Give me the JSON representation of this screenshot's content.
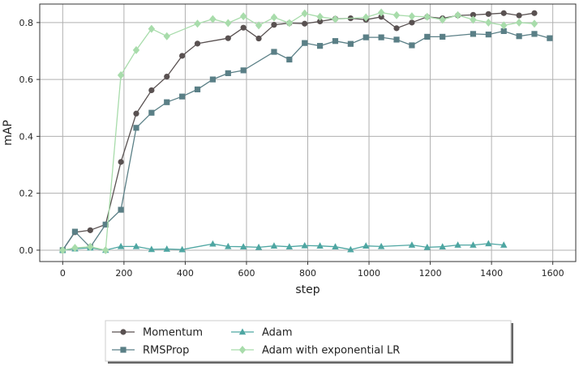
{
  "chart_data": {
    "type": "line",
    "title": "",
    "xlabel": "step",
    "ylabel": "mAP",
    "xlim": [
      -75,
      1675
    ],
    "ylim": [
      -0.04,
      0.865
    ],
    "xticks": [
      0,
      200,
      400,
      600,
      800,
      1000,
      1200,
      1400,
      1600
    ],
    "yticks": [
      0.0,
      0.2,
      0.4,
      0.6,
      0.8
    ],
    "xtick_labels": [
      "0",
      "200",
      "400",
      "600",
      "800",
      "1000",
      "1200",
      "1400",
      "1600"
    ],
    "ytick_labels": [
      "0.0",
      "0.2",
      "0.4",
      "0.6",
      "0.8"
    ],
    "grid": true,
    "legend_position": "bottom-center, below plot",
    "series": [
      {
        "name": "Momentum",
        "color": "#595151",
        "marker": "circle",
        "x": [
          0,
          40,
          90,
          140,
          190,
          240,
          290,
          340,
          390,
          440,
          540,
          590,
          640,
          690,
          740,
          790,
          840,
          890,
          940,
          990,
          1040,
          1090,
          1140,
          1190,
          1240,
          1290,
          1340,
          1390,
          1440,
          1490,
          1540
        ],
        "y": [
          0.0,
          0.063,
          0.07,
          0.09,
          0.31,
          0.48,
          0.562,
          0.61,
          0.683,
          0.726,
          0.745,
          0.782,
          0.744,
          0.792,
          0.798,
          0.796,
          0.804,
          0.813,
          0.815,
          0.81,
          0.82,
          0.78,
          0.8,
          0.82,
          0.815,
          0.825,
          0.827,
          0.83,
          0.833,
          0.825,
          0.833
        ]
      },
      {
        "name": "RMSProp",
        "color": "#5a7f86",
        "marker": "square",
        "x": [
          0,
          40,
          90,
          140,
          190,
          240,
          290,
          340,
          390,
          440,
          490,
          540,
          590,
          690,
          740,
          790,
          840,
          890,
          940,
          990,
          1040,
          1090,
          1140,
          1190,
          1240,
          1340,
          1390,
          1440,
          1490,
          1540,
          1590
        ],
        "y": [
          0.0,
          0.065,
          0.01,
          0.09,
          0.142,
          0.43,
          0.483,
          0.52,
          0.54,
          0.565,
          0.6,
          0.622,
          0.632,
          0.697,
          0.67,
          0.728,
          0.718,
          0.735,
          0.725,
          0.748,
          0.748,
          0.74,
          0.72,
          0.75,
          0.75,
          0.76,
          0.758,
          0.77,
          0.752,
          0.76,
          0.745
        ]
      },
      {
        "name": "Adam",
        "color": "#4ea6a2",
        "marker": "triangle",
        "x": [
          0,
          40,
          90,
          140,
          190,
          240,
          290,
          340,
          390,
          490,
          540,
          590,
          640,
          690,
          740,
          790,
          840,
          890,
          940,
          990,
          1040,
          1140,
          1190,
          1240,
          1290,
          1340,
          1390,
          1440
        ],
        "y": [
          0.0,
          0.005,
          0.008,
          0.0,
          0.013,
          0.013,
          0.003,
          0.004,
          0.002,
          0.022,
          0.013,
          0.012,
          0.01,
          0.015,
          0.012,
          0.016,
          0.015,
          0.012,
          0.002,
          0.015,
          0.013,
          0.018,
          0.01,
          0.012,
          0.018,
          0.018,
          0.023,
          0.018
        ]
      },
      {
        "name": "Adam with exponential LR",
        "color": "#a8dcab",
        "marker": "diamond",
        "x": [
          0,
          40,
          90,
          140,
          190,
          240,
          290,
          340,
          440,
          490,
          540,
          590,
          640,
          690,
          740,
          790,
          840,
          890,
          990,
          1040,
          1090,
          1140,
          1190,
          1240,
          1290,
          1340,
          1390,
          1440,
          1490,
          1540
        ],
        "y": [
          0.0,
          0.008,
          0.012,
          0.0,
          0.615,
          0.703,
          0.778,
          0.752,
          0.796,
          0.812,
          0.798,
          0.822,
          0.79,
          0.818,
          0.798,
          0.832,
          0.82,
          0.812,
          0.818,
          0.835,
          0.826,
          0.822,
          0.82,
          0.81,
          0.826,
          0.81,
          0.8,
          0.79,
          0.8,
          0.796
        ]
      }
    ]
  }
}
